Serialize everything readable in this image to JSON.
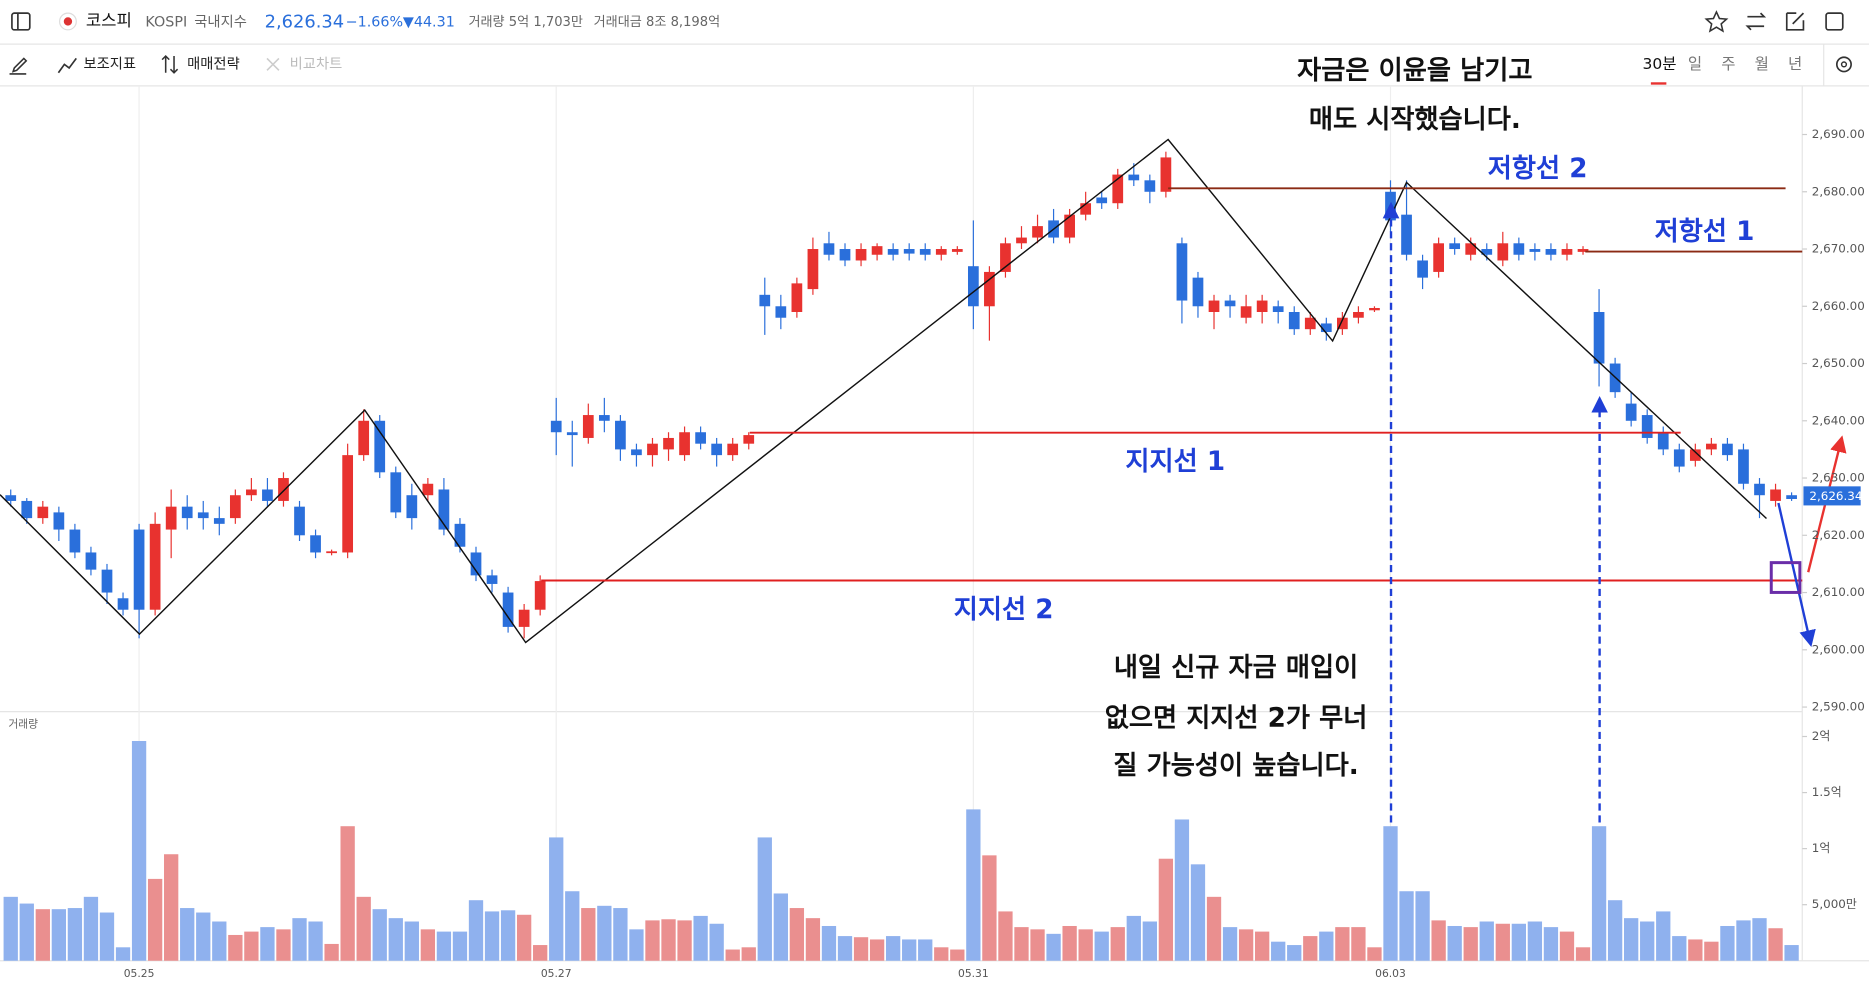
{
  "header": {
    "name": "코스피",
    "code": "KOSPI",
    "market": "국내지수",
    "price": "2,626.34",
    "change_pct": "−1.66%",
    "change": "▼44.31",
    "volume": "거래량 5억 1,703만",
    "amount": "거래대금 8조 8,198억"
  },
  "toolbar": {
    "indicators": "보조지표",
    "strategy": "매매전략",
    "compare": "비교차트",
    "periods": [
      "30분",
      "일",
      "주",
      "월",
      "년"
    ]
  },
  "annotations": {
    "top": [
      "자금은 이윤을 남기고",
      "매도 시작했습니다."
    ],
    "resistance2": "저항선 2",
    "resistance1": "저항선 1",
    "support1": "지지선 1",
    "support2": "지지선 2",
    "bottom": [
      "내일 신규 자금 매입이",
      "없으면 지지선 2가 무너",
      "질 가능성이 높습니다."
    ]
  },
  "chart_data": {
    "type": "candlestick",
    "up_color": "#e8322f",
    "down_color": "#2a6fdb",
    "up_volume_color": "#ea8f8f",
    "down_volume_color": "#8fb1ee",
    "price_tag": "2,626.34",
    "volume_label": "거래량",
    "categories": [
      null,
      null,
      null,
      null,
      null,
      null,
      null,
      null,
      "05.25",
      null,
      null,
      null,
      null,
      null,
      null,
      null,
      null,
      null,
      null,
      null,
      null,
      null,
      null,
      null,
      null,
      null,
      null,
      null,
      null,
      null,
      null,
      null,
      null,
      null,
      "05.27",
      null,
      null,
      null,
      null,
      null,
      null,
      null,
      null,
      null,
      null,
      null,
      null,
      null,
      null,
      null,
      null,
      null,
      null,
      null,
      null,
      null,
      null,
      null,
      null,
      null,
      "05.31",
      null,
      null,
      null,
      null,
      null,
      null,
      null,
      null,
      null,
      null,
      null,
      null,
      null,
      null,
      null,
      null,
      null,
      null,
      null,
      null,
      null,
      null,
      null,
      null,
      null,
      "06.03",
      null,
      null,
      null,
      null,
      null,
      null,
      null,
      null,
      null,
      null,
      null,
      null,
      null,
      null,
      null,
      null,
      null,
      null,
      null,
      null,
      null,
      null,
      null,
      null,
      null
    ],
    "ohlc": [
      [
        2627,
        2628,
        2625,
        2626
      ],
      [
        2626,
        2626.5,
        2622,
        2623
      ],
      [
        2623,
        2626,
        2622,
        2625
      ],
      [
        2624,
        2625,
        2619,
        2621
      ],
      [
        2621,
        2622,
        2616,
        2617
      ],
      [
        2617,
        2618,
        2613,
        2614
      ],
      [
        2614,
        2615,
        2608,
        2610
      ],
      [
        2609,
        2610,
        2606,
        2607
      ],
      [
        2621,
        2622,
        2602,
        2607
      ],
      [
        2607,
        2624,
        2606,
        2622
      ],
      [
        2621,
        2628,
        2616,
        2625
      ],
      [
        2625,
        2627,
        2621,
        2623
      ],
      [
        2624,
        2626,
        2621,
        2623
      ],
      [
        2623,
        2625,
        2620,
        2622
      ],
      [
        2623,
        2628,
        2622,
        2627
      ],
      [
        2627,
        2630,
        2626,
        2628
      ],
      [
        2628,
        2630,
        2625,
        2626
      ],
      [
        2626,
        2631,
        2625,
        2630
      ],
      [
        2625,
        2626,
        2619,
        2620
      ],
      [
        2620,
        2621,
        2616,
        2617
      ],
      [
        2617,
        2617.5,
        2616.5,
        2617.2
      ],
      [
        2617,
        2636,
        2616,
        2634
      ],
      [
        2634,
        2642,
        2633,
        2640
      ],
      [
        2640,
        2641,
        2630,
        2631
      ],
      [
        2631,
        2632,
        2623,
        2624
      ],
      [
        2627,
        2629,
        2621,
        2623
      ],
      [
        2627,
        2630,
        2626,
        2629
      ],
      [
        2628,
        2630,
        2620,
        2621
      ],
      [
        2622,
        2623,
        2617,
        2618
      ],
      [
        2617,
        2618,
        2612,
        2613
      ],
      [
        2613,
        2614,
        2610,
        2611.5
      ],
      [
        2610,
        2611,
        2603,
        2604
      ],
      [
        2604,
        2608,
        2602,
        2607
      ],
      [
        2607,
        2613,
        2606,
        2612
      ],
      [
        2640,
        2644,
        2634,
        2638
      ],
      [
        2638,
        2640,
        2632,
        2637.5
      ],
      [
        2637,
        2643,
        2636,
        2641
      ],
      [
        2641,
        2644,
        2638,
        2640
      ],
      [
        2640,
        2641,
        2633,
        2635
      ],
      [
        2635,
        2636,
        2632,
        2634
      ],
      [
        2634,
        2637,
        2632,
        2636
      ],
      [
        2635,
        2638,
        2633,
        2637
      ],
      [
        2634,
        2639,
        2633,
        2638
      ],
      [
        2638,
        2639,
        2635,
        2636
      ],
      [
        2636,
        2637,
        2632,
        2634
      ],
      [
        2634,
        2637,
        2633,
        2636
      ],
      [
        2636,
        2638,
        2635,
        2637.5
      ],
      [
        2662,
        2665,
        2655,
        2660
      ],
      [
        2660,
        2662,
        2656,
        2658
      ],
      [
        2659,
        2665,
        2658,
        2664
      ],
      [
        2663,
        2672,
        2662,
        2670
      ],
      [
        2671,
        2673,
        2668,
        2669
      ],
      [
        2670,
        2671,
        2667,
        2668
      ],
      [
        2668,
        2671,
        2667,
        2670
      ],
      [
        2669,
        2671,
        2668,
        2670.5
      ],
      [
        2670,
        2671,
        2668,
        2669
      ],
      [
        2670,
        2671,
        2668,
        2669.2
      ],
      [
        2670,
        2671,
        2668,
        2669
      ],
      [
        2669,
        2670.5,
        2668,
        2670
      ],
      [
        2669.5,
        2670.5,
        2669,
        2670
      ],
      [
        2667,
        2675,
        2656,
        2660
      ],
      [
        2660,
        2667,
        2654,
        2666
      ],
      [
        2666,
        2672,
        2665,
        2671
      ],
      [
        2671,
        2674,
        2670,
        2672
      ],
      [
        2672,
        2676,
        2671,
        2674
      ],
      [
        2675,
        2677,
        2671,
        2672
      ],
      [
        2672,
        2677,
        2671,
        2676
      ],
      [
        2676,
        2680,
        2675,
        2678
      ],
      [
        2679,
        2680,
        2677,
        2678
      ],
      [
        2678,
        2684,
        2677,
        2683
      ],
      [
        2683,
        2685,
        2681,
        2682
      ],
      [
        2682,
        2683,
        2678,
        2680
      ],
      [
        2680,
        2687,
        2679,
        2686
      ],
      [
        2671,
        2672,
        2657,
        2661
      ],
      [
        2665,
        2666,
        2658,
        2660
      ],
      [
        2659,
        2662,
        2656,
        2661
      ],
      [
        2661,
        2662,
        2658,
        2660
      ],
      [
        2658,
        2662,
        2657,
        2660
      ],
      [
        2659,
        2662,
        2657,
        2661
      ],
      [
        2660,
        2661,
        2657,
        2659
      ],
      [
        2659,
        2660,
        2655,
        2656
      ],
      [
        2656,
        2659,
        2655,
        2658
      ],
      [
        2657,
        2658,
        2654,
        2655.5
      ],
      [
        2656,
        2659,
        2655,
        2658
      ],
      [
        2658,
        2660,
        2657,
        2659
      ],
      [
        2659.3,
        2660,
        2659,
        2659.7
      ],
      [
        2680,
        2682,
        2673,
        2675
      ],
      [
        2676,
        2682,
        2668,
        2669
      ],
      [
        2668,
        2669,
        2663,
        2665
      ],
      [
        2666,
        2672,
        2665,
        2671
      ],
      [
        2671,
        2672,
        2669,
        2670
      ],
      [
        2669,
        2672,
        2668,
        2671
      ],
      [
        2670,
        2671,
        2668,
        2669
      ],
      [
        2668,
        2673,
        2667,
        2671
      ],
      [
        2671,
        2672,
        2668,
        2669
      ],
      [
        2670,
        2671,
        2668,
        2669.5
      ],
      [
        2670,
        2671,
        2668,
        2669
      ],
      [
        2669,
        2671,
        2668,
        2670
      ],
      [
        2669.5,
        2670.5,
        2669,
        2670
      ],
      [
        2659,
        2663,
        2646,
        2650
      ],
      [
        2650,
        2651,
        2644,
        2645
      ],
      [
        2643,
        2645,
        2639,
        2640
      ],
      [
        2641,
        2642,
        2636,
        2637
      ],
      [
        2638,
        2639,
        2634,
        2635
      ],
      [
        2635,
        2636,
        2631,
        2632
      ],
      [
        2633,
        2636,
        2632,
        2635
      ],
      [
        2635,
        2637,
        2634,
        2636
      ],
      [
        2636,
        2637,
        2633,
        2634
      ],
      [
        2635,
        2636,
        2628,
        2629
      ],
      [
        2629,
        2630,
        2623,
        2627
      ],
      [
        2626,
        2629,
        2625,
        2628
      ],
      [
        2627,
        2627.5,
        2626,
        2626.34
      ]
    ],
    "volume": [
      0.57,
      0.51,
      0.46,
      0.46,
      0.47,
      0.57,
      0.43,
      0.12,
      1.96,
      0.73,
      0.95,
      0.47,
      0.43,
      0.35,
      0.23,
      0.26,
      0.3,
      0.28,
      0.38,
      0.35,
      0.15,
      1.2,
      0.57,
      0.46,
      0.38,
      0.35,
      0.28,
      0.26,
      0.26,
      0.54,
      0.44,
      0.45,
      0.41,
      0.14,
      1.1,
      0.62,
      0.47,
      0.49,
      0.47,
      0.28,
      0.36,
      0.37,
      0.36,
      0.4,
      0.33,
      0.1,
      0.12,
      1.1,
      0.6,
      0.47,
      0.38,
      0.31,
      0.22,
      0.21,
      0.19,
      0.22,
      0.19,
      0.19,
      0.12,
      0.1,
      1.35,
      0.94,
      0.44,
      0.3,
      0.28,
      0.24,
      0.31,
      0.28,
      0.26,
      0.3,
      0.4,
      0.35,
      0.91,
      1.26,
      0.86,
      0.57,
      0.3,
      0.28,
      0.26,
      0.17,
      0.14,
      0.22,
      0.26,
      0.3,
      0.3,
      0.12,
      1.2,
      0.62,
      0.62,
      0.36,
      0.31,
      0.3,
      0.35,
      0.33,
      0.33,
      0.35,
      0.3,
      0.26,
      0.12,
      1.2,
      0.54,
      0.38,
      0.35,
      0.44,
      0.22,
      0.19,
      0.17,
      0.31,
      0.36,
      0.38,
      0.29,
      0.14
    ],
    "ylim": [
      2589.2,
      2698.5
    ],
    "yticks": [
      {
        "value": 2590,
        "label": "2,590.00"
      },
      {
        "value": 2600,
        "label": "2,600.00"
      },
      {
        "value": 2610,
        "label": "2,610.00"
      },
      {
        "value": 2620,
        "label": "2,620.00"
      },
      {
        "value": 2630,
        "label": "2,630.00"
      },
      {
        "value": 2640,
        "label": "2,640.00"
      },
      {
        "value": 2650,
        "label": "2,650.00"
      },
      {
        "value": 2660,
        "label": "2,660.00"
      },
      {
        "value": 2670,
        "label": "2,670.00"
      },
      {
        "value": 2680,
        "label": "2,680.00"
      },
      {
        "value": 2690,
        "label": "2,690.00"
      }
    ],
    "y2lim": [
      0,
      2.19
    ],
    "y2ticks": [
      {
        "value": 0.5,
        "label": "5,000만"
      },
      {
        "value": 1,
        "label": "1억"
      },
      {
        "value": 1.5,
        "label": "1.5억"
      },
      {
        "value": 2,
        "label": "2억"
      }
    ],
    "grid": false
  }
}
